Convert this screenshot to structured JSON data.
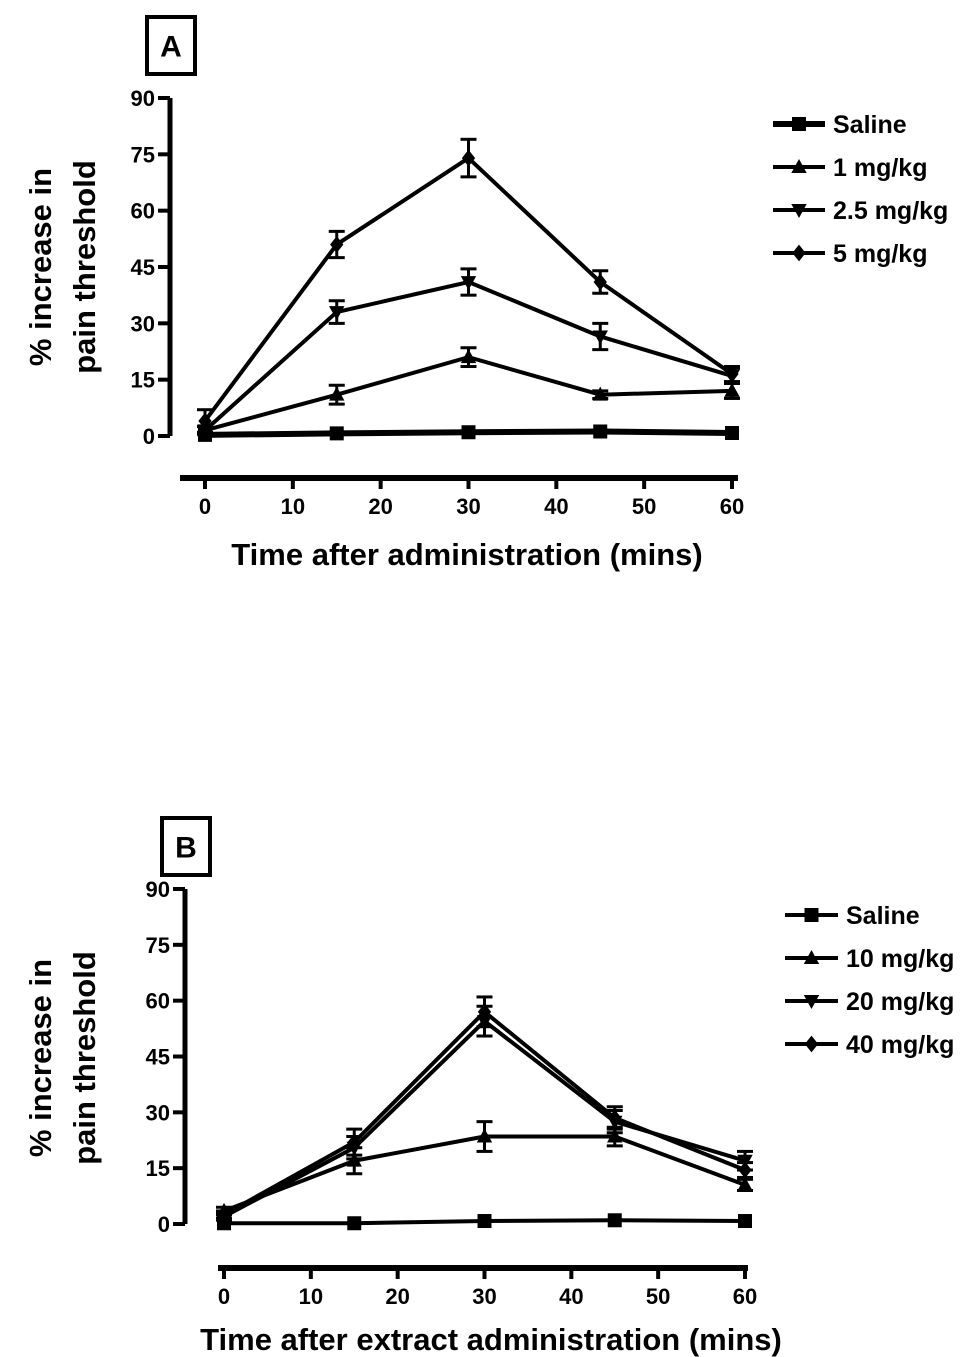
{
  "chart_data": [
    {
      "type": "line",
      "panel_label": "A",
      "xlabel": "Time after administration (mins)",
      "ylabel": [
        "% increase in",
        "pain threshold"
      ],
      "x": [
        0,
        15,
        30,
        45,
        60
      ],
      "xticks": [
        0,
        10,
        20,
        30,
        40,
        50,
        60
      ],
      "yticks": [
        0,
        15,
        30,
        45,
        60,
        75,
        90
      ],
      "xlim": [
        0,
        60
      ],
      "ylim": [
        0,
        90
      ],
      "grid": false,
      "legend_position": "top-right",
      "series": [
        {
          "name": "Saline",
          "marker": "square",
          "values": [
            0.3,
            0.7,
            1.0,
            1.2,
            0.8
          ],
          "errors": [
            0.5,
            0.5,
            0.5,
            0.5,
            0.5
          ]
        },
        {
          "name": "1 mg/kg",
          "marker": "triangle-up",
          "values": [
            1.5,
            11,
            21,
            11,
            12
          ],
          "errors": [
            1,
            2.5,
            2.5,
            1,
            2
          ]
        },
        {
          "name": "2.5 mg/kg",
          "marker": "triangle-down",
          "values": [
            1.5,
            33,
            41,
            26.5,
            16
          ],
          "errors": [
            1,
            3,
            3.5,
            3.5,
            2
          ]
        },
        {
          "name": "5 mg/kg",
          "marker": "diamond",
          "values": [
            4,
            51,
            74,
            41,
            16.5
          ],
          "errors": [
            3,
            3.5,
            5,
            3,
            2
          ]
        }
      ]
    },
    {
      "type": "line",
      "panel_label": "B",
      "xlabel": "Time after extract administration (mins)",
      "ylabel": [
        "% increase in",
        "pain threshold"
      ],
      "x": [
        0,
        15,
        30,
        45,
        60
      ],
      "xticks": [
        0,
        10,
        20,
        30,
        40,
        50,
        60
      ],
      "yticks": [
        0,
        15,
        30,
        45,
        60,
        75,
        90
      ],
      "xlim": [
        0,
        60
      ],
      "ylim": [
        0,
        90
      ],
      "grid": false,
      "legend_position": "top-right",
      "series": [
        {
          "name": "Saline",
          "marker": "square",
          "values": [
            0.2,
            0.2,
            0.8,
            1.0,
            0.8
          ],
          "errors": [
            0.3,
            0.3,
            0.4,
            0.4,
            0.4
          ]
        },
        {
          "name": "10 mg/kg",
          "marker": "triangle-up",
          "values": [
            3.5,
            17,
            23.5,
            23.5,
            10.5
          ],
          "errors": [
            1,
            3.5,
            4,
            2.5,
            1.5
          ]
        },
        {
          "name": "20 mg/kg",
          "marker": "triangle-down",
          "values": [
            2,
            20.5,
            54.5,
            27.5,
            17
          ],
          "errors": [
            1,
            3,
            4,
            3,
            2.5
          ]
        },
        {
          "name": "40 mg/kg",
          "marker": "diamond",
          "values": [
            2.5,
            22,
            57,
            28.5,
            14.5
          ],
          "errors": [
            1,
            3.5,
            4,
            3,
            2
          ]
        }
      ]
    }
  ]
}
